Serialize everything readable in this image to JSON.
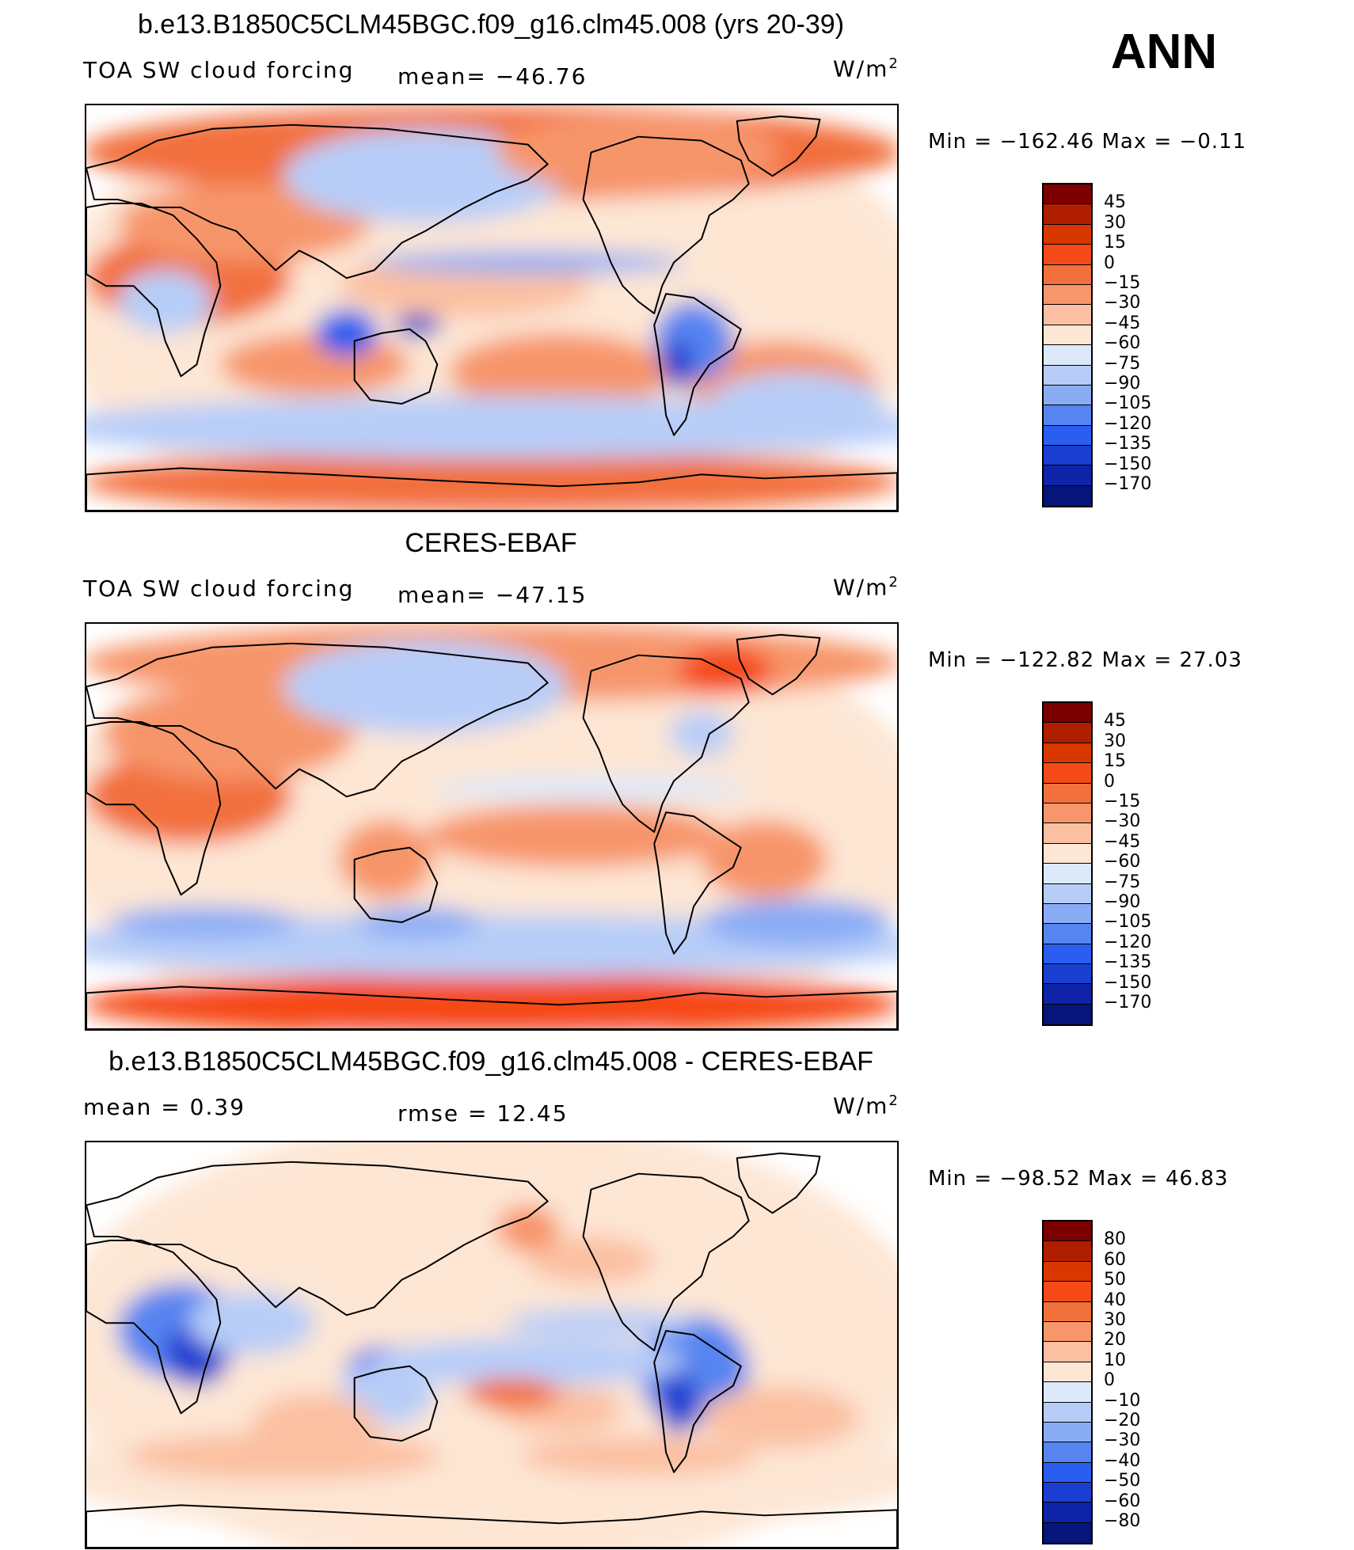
{
  "season": "ANN",
  "panels": [
    {
      "title": "b.e13.B1850C5CLM45BGC.f09_g16.clm45.008 (yrs 20-39)",
      "left_label": "TOA SW cloud forcing",
      "center_label": "mean= −46.76",
      "units_base": "W/m",
      "units_exp": "2",
      "minmax": "Min = −162.46 Max =  −0.11",
      "levels": [
        "45",
        "30",
        "15",
        "0",
        "−15",
        "−30",
        "−45",
        "−60",
        "−75",
        "−90",
        "−105",
        "−120",
        "−135",
        "−150",
        "−170"
      ],
      "map_mode": "model"
    },
    {
      "title": "CERES-EBAF",
      "left_label": "TOA SW cloud forcing",
      "center_label": "mean= −47.15",
      "units_base": "W/m",
      "units_exp": "2",
      "minmax": "Min = −122.82 Max =  27.03",
      "levels": [
        "45",
        "30",
        "15",
        "0",
        "−15",
        "−30",
        "−45",
        "−60",
        "−75",
        "−90",
        "−105",
        "−120",
        "−135",
        "−150",
        "−170"
      ],
      "map_mode": "obs"
    },
    {
      "title": "b.e13.B1850C5CLM45BGC.f09_g16.clm45.008 - CERES-EBAF",
      "left_label": "mean =   0.39",
      "center_label": "rmse =   12.45",
      "units_base": "W/m",
      "units_exp": "2",
      "minmax": "Min = −98.52 Max =  46.83",
      "levels": [
        "80",
        "60",
        "50",
        "40",
        "30",
        "20",
        "10",
        "0",
        "−10",
        "−20",
        "−30",
        "−40",
        "−50",
        "−60",
        "−80"
      ],
      "map_mode": "diff"
    }
  ],
  "colors": {
    "scale": [
      "#7d0000",
      "#b01e00",
      "#d93700",
      "#f54a17",
      "#f2703c",
      "#f7956b",
      "#fbc0a1",
      "#fde6d4",
      "#dbe9fb",
      "#b7cdf8",
      "#8aacf5",
      "#5684f0",
      "#2a5ef0",
      "#1a3fd0",
      "#0e23a8",
      "#06157a"
    ],
    "coast": "#000000"
  }
}
